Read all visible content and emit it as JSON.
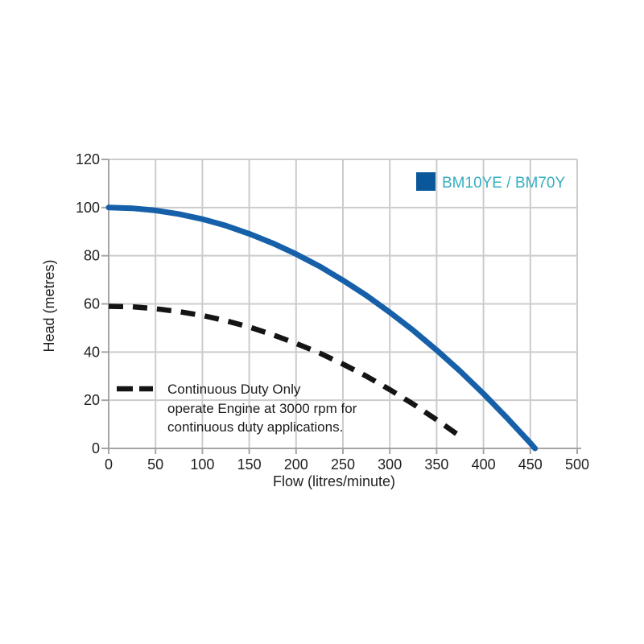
{
  "page": {
    "background": "#ffffff"
  },
  "chart_data": {
    "type": "line",
    "title": "",
    "xlabel": "Flow (litres/minute)",
    "ylabel": "Head (metres)",
    "xlim": [
      0,
      500
    ],
    "ylim": [
      0,
      120
    ],
    "xticks": [
      0,
      50,
      100,
      150,
      200,
      250,
      300,
      350,
      400,
      450,
      500
    ],
    "yticks": [
      0,
      20,
      40,
      60,
      80,
      100,
      120
    ],
    "grid": true,
    "grid_color": "#cccccc",
    "axis_color": "#a5a5a5",
    "tick_label_color": "#1f1f1f",
    "legend": {
      "label": "BM10YE / BM70Y",
      "swatch_color": "#0a589b",
      "text_color": "#36afc3",
      "position": "top-right"
    },
    "series": [
      {
        "name": "BM10YE / BM70Y",
        "style": "solid",
        "color": "#1660a9",
        "stroke_width": 7,
        "points": [
          [
            0,
            100
          ],
          [
            25,
            99.7
          ],
          [
            50,
            98.8
          ],
          [
            75,
            97.3
          ],
          [
            100,
            95.2
          ],
          [
            125,
            92.5
          ],
          [
            150,
            89.1
          ],
          [
            175,
            85.2
          ],
          [
            200,
            80.7
          ],
          [
            225,
            75.6
          ],
          [
            250,
            69.8
          ],
          [
            275,
            63.5
          ],
          [
            300,
            56.5
          ],
          [
            325,
            49.0
          ],
          [
            350,
            40.8
          ],
          [
            375,
            32.1
          ],
          [
            400,
            22.7
          ],
          [
            425,
            12.7
          ],
          [
            450,
            2.2
          ],
          [
            455,
            0
          ]
        ]
      },
      {
        "name": "Continuous Duty Only",
        "style": "dashed",
        "color": "#141414",
        "stroke_width": 6.5,
        "points": [
          [
            0,
            59
          ],
          [
            25,
            58.8
          ],
          [
            50,
            58.0
          ],
          [
            75,
            56.8
          ],
          [
            100,
            55.2
          ],
          [
            125,
            53.0
          ],
          [
            150,
            50.4
          ],
          [
            175,
            47.2
          ],
          [
            200,
            43.6
          ],
          [
            225,
            39.6
          ],
          [
            250,
            35.0
          ],
          [
            275,
            30.0
          ],
          [
            300,
            24.4
          ],
          [
            325,
            18.4
          ],
          [
            350,
            11.9
          ],
          [
            375,
            5.0
          ]
        ]
      }
    ],
    "annotation": {
      "lines": [
        "Continuous Duty Only",
        "operate Engine at 3000 rpm for",
        "continuous duty applications."
      ]
    }
  }
}
